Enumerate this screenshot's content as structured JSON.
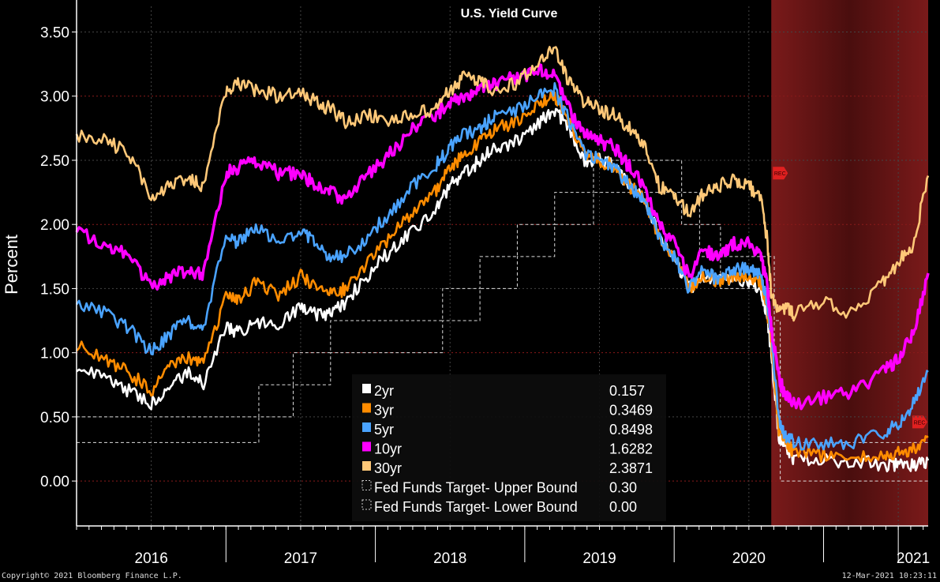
{
  "chart_data": {
    "type": "line",
    "title": "U.S. Yield Curve",
    "ylabel": "Percent",
    "ylim": [
      -0.35,
      3.7
    ],
    "y_ticks": [
      "3.50",
      "3.00",
      "2.50",
      "2.00",
      "1.50",
      "1.00",
      "0.50",
      "0.00"
    ],
    "y_tick_values": [
      3.5,
      3.0,
      2.5,
      2.0,
      1.5,
      1.0,
      0.5,
      0.0
    ],
    "x_range": [
      2015.5,
      2021.2
    ],
    "x_tick_labels": [
      "2016",
      "2017",
      "2018",
      "2019",
      "2020",
      "2021"
    ],
    "x_tick_centers": [
      2016.0,
      2017.0,
      2018.0,
      2019.0,
      2020.0,
      2021.1
    ],
    "x_tick_bounds": [
      2016.5,
      2017.5,
      2018.5,
      2019.5,
      2020.5,
      2021.0
    ],
    "recession_band": {
      "start": 2020.15,
      "end": 2021.2,
      "marker_label": "REC"
    },
    "grid": true,
    "legend_position": "bottom-center",
    "series": [
      {
        "name": "2yr",
        "last_value": "0.157",
        "color": "#ffffff",
        "x": [
          2015.5,
          2015.7,
          2015.85,
          2016.0,
          2016.12,
          2016.25,
          2016.35,
          2016.5,
          2016.58,
          2016.7,
          2016.85,
          2017.0,
          2017.1,
          2017.2,
          2017.3,
          2017.45,
          2017.6,
          2017.75,
          2017.9,
          2018.0,
          2018.1,
          2018.2,
          2018.3,
          2018.45,
          2018.6,
          2018.7,
          2018.8,
          2018.9,
          2019.0,
          2019.1,
          2019.2,
          2019.3,
          2019.4,
          2019.5,
          2019.6,
          2019.7,
          2019.8,
          2019.9,
          2020.0,
          2020.08,
          2020.12,
          2020.15,
          2020.2,
          2020.25,
          2020.3,
          2020.5,
          2020.7,
          2020.9,
          2021.0,
          2021.1,
          2021.2
        ],
        "y": [
          0.9,
          0.8,
          0.7,
          0.6,
          0.75,
          0.85,
          0.75,
          1.2,
          1.15,
          1.25,
          1.2,
          1.35,
          1.3,
          1.3,
          1.4,
          1.6,
          1.8,
          1.95,
          2.1,
          2.3,
          2.4,
          2.5,
          2.6,
          2.65,
          2.8,
          2.9,
          2.75,
          2.5,
          2.5,
          2.45,
          2.3,
          2.2,
          1.9,
          1.75,
          1.5,
          1.6,
          1.55,
          1.6,
          1.55,
          1.5,
          1.3,
          1.0,
          0.35,
          0.25,
          0.18,
          0.16,
          0.15,
          0.13,
          0.12,
          0.13,
          0.16
        ]
      },
      {
        "name": "3yr",
        "last_value": "0.3469",
        "color": "#ff8c00",
        "x": [
          2015.5,
          2015.7,
          2015.85,
          2016.0,
          2016.12,
          2016.25,
          2016.35,
          2016.5,
          2016.58,
          2016.7,
          2016.85,
          2017.0,
          2017.1,
          2017.2,
          2017.3,
          2017.45,
          2017.6,
          2017.75,
          2017.9,
          2018.0,
          2018.1,
          2018.2,
          2018.3,
          2018.45,
          2018.6,
          2018.7,
          2018.8,
          2018.9,
          2019.0,
          2019.1,
          2019.2,
          2019.3,
          2019.4,
          2019.5,
          2019.6,
          2019.7,
          2019.8,
          2019.9,
          2020.0,
          2020.08,
          2020.12,
          2020.15,
          2020.2,
          2020.25,
          2020.3,
          2020.5,
          2020.7,
          2020.9,
          2021.0,
          2021.1,
          2021.2
        ],
        "y": [
          1.05,
          0.95,
          0.85,
          0.7,
          0.9,
          0.95,
          0.9,
          1.45,
          1.4,
          1.55,
          1.45,
          1.6,
          1.5,
          1.45,
          1.5,
          1.7,
          1.9,
          2.1,
          2.25,
          2.45,
          2.55,
          2.65,
          2.75,
          2.8,
          2.95,
          3.0,
          2.8,
          2.55,
          2.5,
          2.45,
          2.3,
          2.2,
          1.9,
          1.75,
          1.5,
          1.6,
          1.55,
          1.6,
          1.6,
          1.55,
          1.35,
          1.1,
          0.4,
          0.3,
          0.22,
          0.2,
          0.18,
          0.2,
          0.22,
          0.25,
          0.35
        ]
      },
      {
        "name": "5yr",
        "last_value": "0.8498",
        "color": "#4aa3ff",
        "x": [
          2015.5,
          2015.7,
          2015.85,
          2016.0,
          2016.12,
          2016.25,
          2016.35,
          2016.5,
          2016.58,
          2016.7,
          2016.85,
          2017.0,
          2017.1,
          2017.2,
          2017.3,
          2017.45,
          2017.6,
          2017.75,
          2017.9,
          2018.0,
          2018.1,
          2018.2,
          2018.3,
          2018.45,
          2018.6,
          2018.7,
          2018.8,
          2018.9,
          2019.0,
          2019.1,
          2019.2,
          2019.3,
          2019.4,
          2019.5,
          2019.6,
          2019.7,
          2019.8,
          2019.9,
          2020.0,
          2020.08,
          2020.12,
          2020.15,
          2020.2,
          2020.25,
          2020.3,
          2020.5,
          2020.7,
          2020.9,
          2021.0,
          2021.1,
          2021.2
        ],
        "y": [
          1.4,
          1.3,
          1.2,
          1.0,
          1.15,
          1.25,
          1.2,
          1.9,
          1.85,
          2.0,
          1.85,
          1.95,
          1.85,
          1.75,
          1.75,
          1.9,
          2.1,
          2.3,
          2.45,
          2.6,
          2.7,
          2.75,
          2.85,
          2.9,
          3.0,
          3.05,
          2.8,
          2.55,
          2.5,
          2.45,
          2.3,
          2.2,
          1.9,
          1.75,
          1.5,
          1.65,
          1.55,
          1.65,
          1.65,
          1.6,
          1.4,
          1.15,
          0.45,
          0.35,
          0.3,
          0.28,
          0.3,
          0.38,
          0.45,
          0.6,
          0.85
        ]
      },
      {
        "name": "10yr",
        "last_value": "1.6282",
        "color": "#ff00ff",
        "x": [
          2015.5,
          2015.7,
          2015.85,
          2016.0,
          2016.12,
          2016.25,
          2016.35,
          2016.5,
          2016.58,
          2016.7,
          2016.85,
          2017.0,
          2017.1,
          2017.2,
          2017.3,
          2017.45,
          2017.6,
          2017.75,
          2017.9,
          2018.0,
          2018.1,
          2018.2,
          2018.3,
          2018.45,
          2018.6,
          2018.7,
          2018.8,
          2018.9,
          2019.0,
          2019.1,
          2019.2,
          2019.3,
          2019.4,
          2019.5,
          2019.6,
          2019.7,
          2019.8,
          2019.9,
          2020.0,
          2020.08,
          2020.12,
          2020.15,
          2020.2,
          2020.25,
          2020.3,
          2020.5,
          2020.7,
          2020.9,
          2021.0,
          2021.1,
          2021.2
        ],
        "y": [
          1.95,
          1.85,
          1.75,
          1.5,
          1.6,
          1.65,
          1.6,
          2.4,
          2.45,
          2.5,
          2.4,
          2.4,
          2.3,
          2.25,
          2.2,
          2.4,
          2.55,
          2.75,
          2.85,
          2.95,
          3.0,
          3.05,
          3.1,
          3.15,
          3.2,
          3.15,
          2.9,
          2.7,
          2.65,
          2.6,
          2.45,
          2.3,
          2.0,
          1.85,
          1.6,
          1.8,
          1.75,
          1.85,
          1.85,
          1.75,
          1.55,
          1.2,
          0.8,
          0.65,
          0.6,
          0.65,
          0.7,
          0.85,
          0.95,
          1.15,
          1.62
        ]
      },
      {
        "name": "30yr",
        "last_value": "2.3871",
        "color": "#ffc878",
        "x": [
          2015.5,
          2015.7,
          2015.85,
          2016.0,
          2016.12,
          2016.25,
          2016.35,
          2016.5,
          2016.58,
          2016.7,
          2016.85,
          2017.0,
          2017.1,
          2017.2,
          2017.3,
          2017.45,
          2017.6,
          2017.75,
          2017.9,
          2018.0,
          2018.1,
          2018.2,
          2018.3,
          2018.45,
          2018.6,
          2018.7,
          2018.8,
          2018.9,
          2019.0,
          2019.1,
          2019.2,
          2019.3,
          2019.4,
          2019.5,
          2019.6,
          2019.7,
          2019.8,
          2019.9,
          2020.0,
          2020.08,
          2020.12,
          2020.15,
          2020.2,
          2020.25,
          2020.3,
          2020.5,
          2020.7,
          2020.9,
          2021.0,
          2021.1,
          2021.2
        ],
        "y": [
          2.7,
          2.65,
          2.55,
          2.2,
          2.3,
          2.35,
          2.3,
          3.05,
          3.1,
          3.05,
          3.0,
          3.05,
          2.95,
          2.9,
          2.8,
          2.85,
          2.8,
          2.85,
          2.9,
          3.05,
          3.15,
          3.1,
          3.05,
          3.1,
          3.3,
          3.35,
          3.1,
          2.95,
          2.9,
          2.85,
          2.75,
          2.6,
          2.3,
          2.2,
          2.1,
          2.25,
          2.3,
          2.35,
          2.3,
          2.2,
          1.9,
          1.45,
          1.3,
          1.35,
          1.3,
          1.4,
          1.3,
          1.55,
          1.7,
          1.85,
          2.38
        ]
      }
    ],
    "step_series": [
      {
        "name": "Fed Funds Target- Upper Bound",
        "last_value": "0.30",
        "color": "#dddddd",
        "x": [
          2015.5,
          2016.47,
          2016.72,
          2016.95,
          2017.2,
          2017.45,
          2017.95,
          2018.2,
          2018.45,
          2018.7,
          2018.96,
          2019.55,
          2019.67,
          2019.81,
          2020.17,
          2020.21,
          2021.2
        ],
        "y": [
          0.5,
          0.5,
          0.75,
          1.0,
          1.25,
          1.25,
          1.5,
          1.75,
          2.0,
          2.25,
          2.5,
          2.25,
          2.0,
          1.75,
          1.25,
          0.3,
          0.3
        ]
      },
      {
        "name": "Fed Funds Target- Lower Bound",
        "last_value": "0.00",
        "color": "#dddddd",
        "x": [
          2015.5,
          2016.47,
          2016.72,
          2016.95,
          2017.2,
          2017.45,
          2017.95,
          2018.2,
          2018.45,
          2018.7,
          2018.96,
          2019.55,
          2019.67,
          2019.81,
          2020.17,
          2020.21,
          2021.2
        ],
        "y": [
          0.3,
          0.3,
          0.5,
          0.75,
          1.0,
          1.0,
          1.25,
          1.5,
          1.75,
          2.0,
          2.25,
          2.0,
          1.75,
          1.5,
          1.0,
          0.0,
          0.0
        ]
      }
    ]
  },
  "footer": {
    "copyright": "Copyright© 2021 Bloomberg Finance L.P.",
    "timestamp": "12-Mar-2021 10:23:11"
  }
}
